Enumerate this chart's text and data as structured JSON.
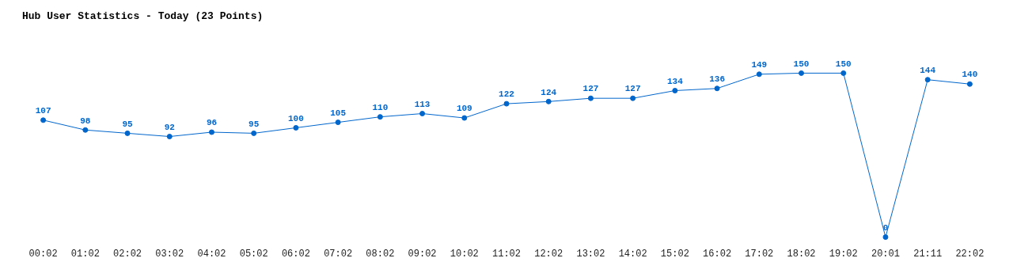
{
  "chart_data": {
    "type": "line",
    "title": "Hub User Statistics - Today (23 Points)",
    "categories": [
      "00:02",
      "01:02",
      "02:02",
      "03:02",
      "04:02",
      "05:02",
      "06:02",
      "07:02",
      "08:02",
      "09:02",
      "10:02",
      "11:02",
      "12:02",
      "13:02",
      "14:02",
      "15:02",
      "16:02",
      "17:02",
      "18:02",
      "19:02",
      "20:01",
      "21:11",
      "22:02"
    ],
    "series": [
      {
        "color": "#0066cc",
        "values": [
          107,
          98,
          95,
          92,
          96,
          95,
          100,
          105,
          110,
          113,
          109,
          122,
          124,
          127,
          127,
          134,
          136,
          149,
          150,
          150,
          0,
          144,
          140
        ]
      }
    ],
    "data_labels": true,
    "legend": false,
    "grid": false,
    "marker": "circle",
    "line_style": "solid",
    "tick_labels": "x"
  }
}
